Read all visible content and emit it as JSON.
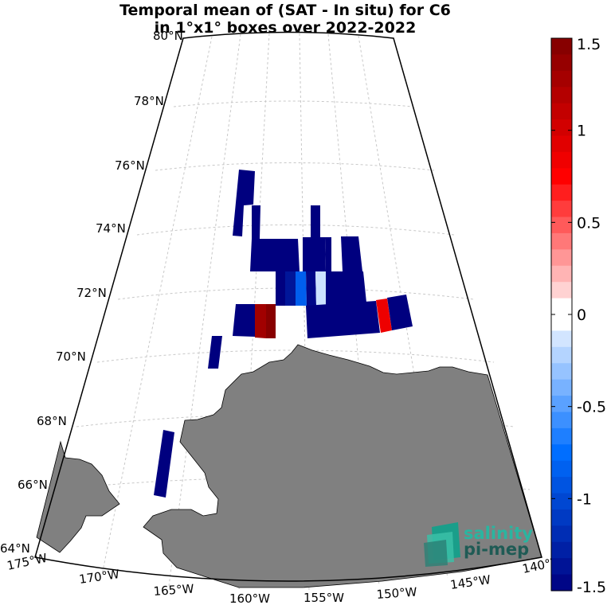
{
  "title": {
    "line1": "Temporal mean of (SAT - In situ) for C6",
    "line2": "in 1°x1° boxes over 2022-2022"
  },
  "lat_labels": [
    "80°N",
    "78°N",
    "76°N",
    "74°N",
    "72°N",
    "70°N",
    "68°N",
    "66°N",
    "64°N"
  ],
  "lon_labels": [
    "175°W",
    "170°W",
    "165°W",
    "160°W",
    "155°W",
    "150°W",
    "145°W",
    "140°W"
  ],
  "colorbar": {
    "ticks": [
      "1.5",
      "1",
      "0.5",
      "0",
      "-0.5",
      "-1",
      "-1.5"
    ],
    "tick_values": [
      1.5,
      1,
      0.5,
      0,
      -0.5,
      -1,
      -1.5
    ],
    "range": [
      -1.5,
      1.5
    ]
  },
  "logo": {
    "line1": "salinity",
    "line2": "pi-mep"
  },
  "colors": {
    "land": "#808080",
    "low": "#00007f",
    "high": "#7f0000",
    "zero": "#ffffff"
  }
}
